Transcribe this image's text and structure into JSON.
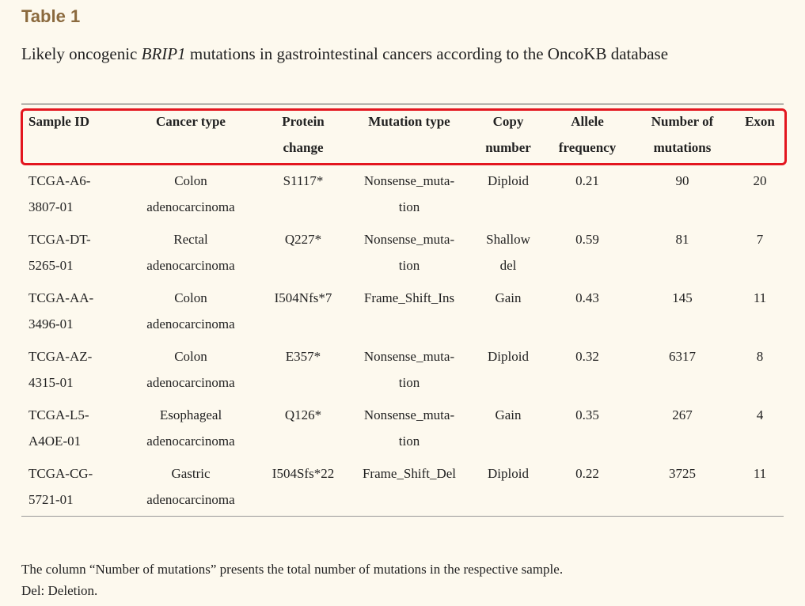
{
  "header": {
    "title": "Table 1",
    "caption": {
      "before": "Likely oncogenic ",
      "gene": "BRIP1",
      "after": " mutations in gastrointestinal cancers according to the OncoKB database"
    }
  },
  "table": {
    "columns": [
      "Sample ID",
      "Cancer type",
      "Protein change",
      "Mutation type",
      "Copy number",
      "Allele frequency",
      "Number of mutations",
      "Exon"
    ],
    "rows": [
      [
        "TCGA-A6-3807-01",
        "Colon adenocarcinoma",
        "S1117*",
        "Nonsense_muta­tion",
        "Diploid",
        "0.21",
        "90",
        "20"
      ],
      [
        "TCGA-DT-5265-01",
        "Rectal adenocarcinoma",
        "Q227*",
        "Nonsense_muta­tion",
        "Shallow del",
        "0.59",
        "81",
        "7"
      ],
      [
        "TCGA-AA-3496-01",
        "Colon adenocarcinoma",
        "I504Nfs*7",
        "Frame_Shift_Ins",
        "Gain",
        "0.43",
        "145",
        "11"
      ],
      [
        "TCGA-AZ-4315-01",
        "Colon adenocarcinoma",
        "E357*",
        "Nonsense_muta­tion",
        "Diploid",
        "0.32",
        "6317",
        "8"
      ],
      [
        "TCGA-L5-A4OE-01",
        "Esophageal adenocarcinoma",
        "Q126*",
        "Nonsense_muta­tion",
        "Gain",
        "0.35",
        "267",
        "4"
      ],
      [
        "TCGA-CG-5721-01",
        "Gastric adenocarcinoma",
        "I504Sfs*22",
        "Frame_Shift_Del",
        "Diploid",
        "0.22",
        "3725",
        "11"
      ]
    ]
  },
  "footnotes": [
    "The column “Number of mutations” presents the total number of mutations in the respective sample.",
    "Del: Deletion."
  ]
}
